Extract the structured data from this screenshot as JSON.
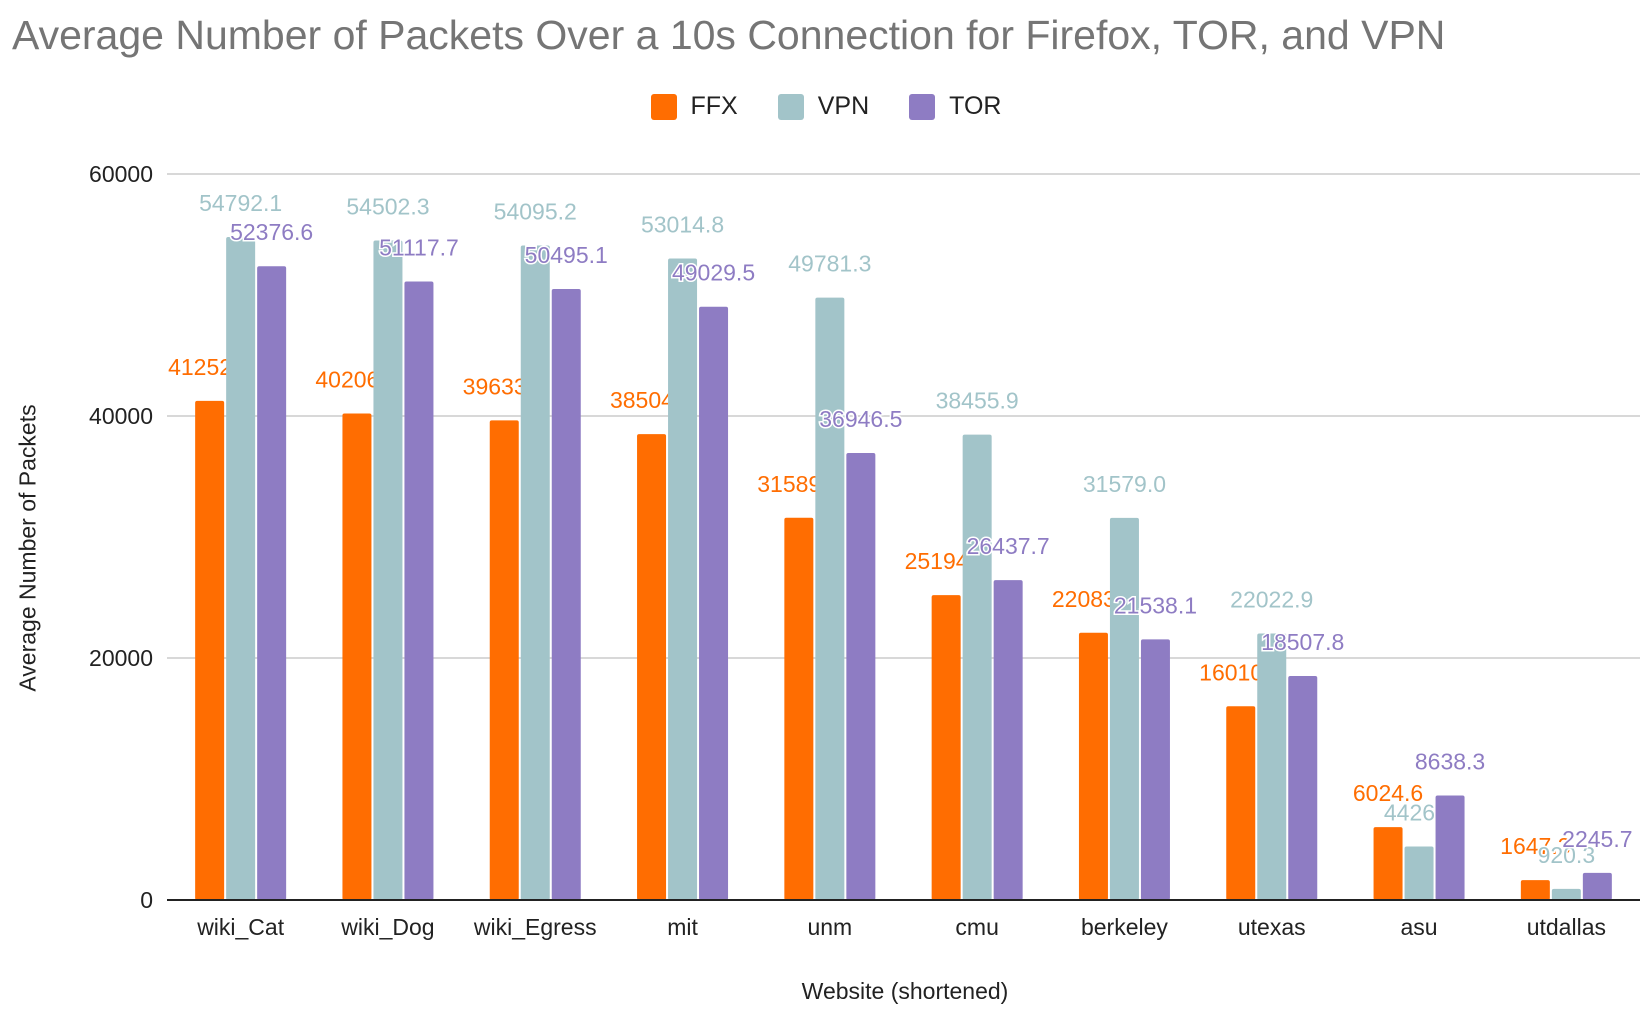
{
  "chart_data": {
    "type": "bar",
    "title": "Average Number of Packets Over a 10s Connection for Firefox, TOR, and VPN",
    "xlabel": "Website (shortened)",
    "ylabel": "Average Number of Packets",
    "categories": [
      "wiki_Cat",
      "wiki_Dog",
      "wiki_Egress",
      "mit",
      "unm",
      "cmu",
      "berkeley",
      "utexas",
      "asu",
      "utdallas"
    ],
    "series": [
      {
        "name": "FFX",
        "color": "#ff6d01",
        "values": [
          41252.3,
          40206.2,
          39633.9,
          38504.3,
          31589.8,
          25194.8,
          22083.9,
          16010.2,
          6024.6,
          1647.3
        ]
      },
      {
        "name": "VPN",
        "color": "#a2c4c9",
        "values": [
          54792.1,
          54502.3,
          54095.2,
          53014.8,
          49781.3,
          38455.9,
          31579.0,
          22022.9,
          4426.5,
          920.3
        ]
      },
      {
        "name": "TOR",
        "color": "#8e7cc3",
        "values": [
          52376.6,
          51117.7,
          50495.1,
          49029.5,
          36946.5,
          26437.7,
          21538.1,
          18507.8,
          8638.3,
          2245.7
        ]
      }
    ],
    "yticks": [
      0,
      20000,
      40000,
      60000
    ],
    "ylim": [
      0,
      60000
    ],
    "grid": true,
    "legend_position": "top-center"
  }
}
